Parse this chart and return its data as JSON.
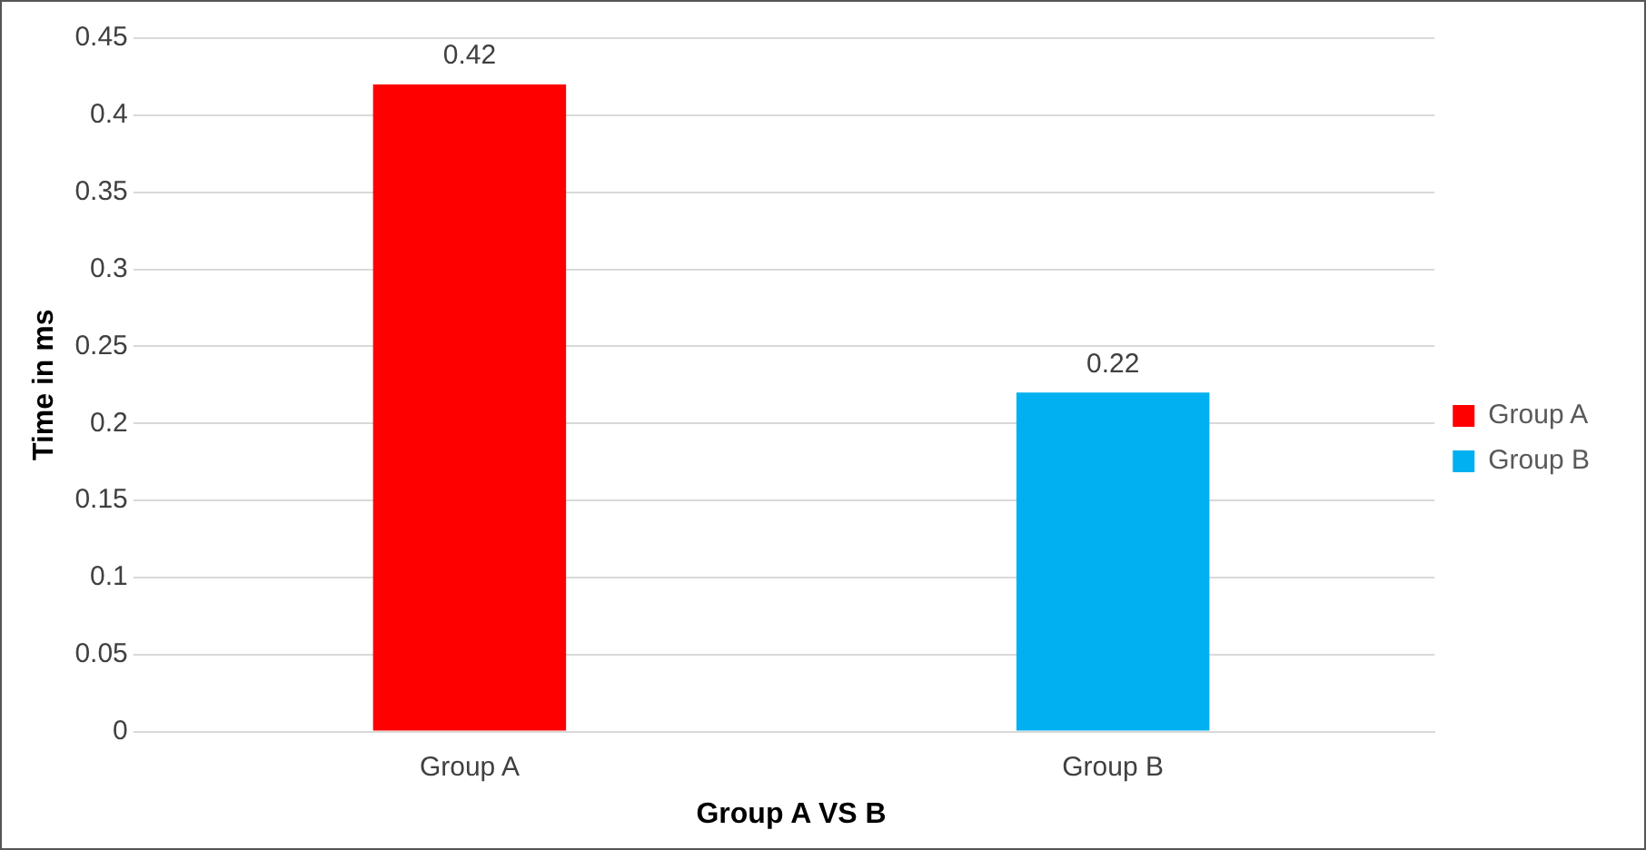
{
  "chart_data": {
    "type": "bar",
    "xlabel": "Group A VS B",
    "ylabel": "Time in ms",
    "categories": [
      "Group A",
      "Group B"
    ],
    "series": [
      {
        "name": "Group A",
        "color": "#ff0000",
        "values": [
          0.42,
          null
        ]
      },
      {
        "name": "Group B",
        "color": "#00b0f0",
        "values": [
          null,
          0.22
        ]
      }
    ],
    "ylim": [
      0,
      0.45
    ],
    "yticks": [
      0,
      0.05,
      0.1,
      0.15,
      0.2,
      0.25,
      0.3,
      0.35,
      0.4,
      0.45
    ],
    "grid": "y",
    "legend": "right",
    "data_labels": true
  }
}
